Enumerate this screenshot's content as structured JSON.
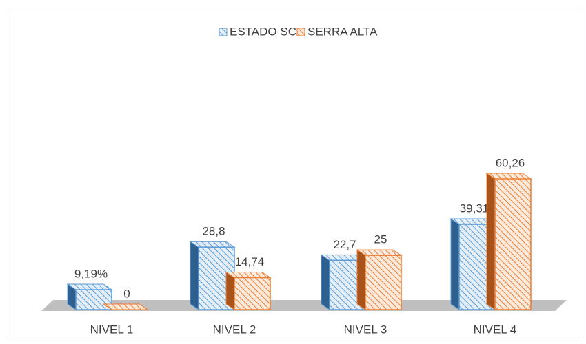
{
  "chart_data": {
    "type": "bar3d",
    "categories": [
      "NIVEL 1",
      "NIVEL 2",
      "NIVEL 3",
      "NIVEL 4"
    ],
    "series": [
      {
        "name": "ESTADO SC",
        "color": "#5b9bd5",
        "values": [
          9.19,
          28.8,
          22.7,
          39.31
        ],
        "value_labels": [
          "9,19%",
          "28,8",
          "22,7",
          "39,31"
        ]
      },
      {
        "name": "SERRA ALTA",
        "color": "#ed7d31",
        "values": [
          0,
          14.74,
          25,
          60.26
        ],
        "value_labels": [
          "0",
          "14,74",
          "25",
          "60,26"
        ]
      }
    ],
    "legend": "top"
  }
}
